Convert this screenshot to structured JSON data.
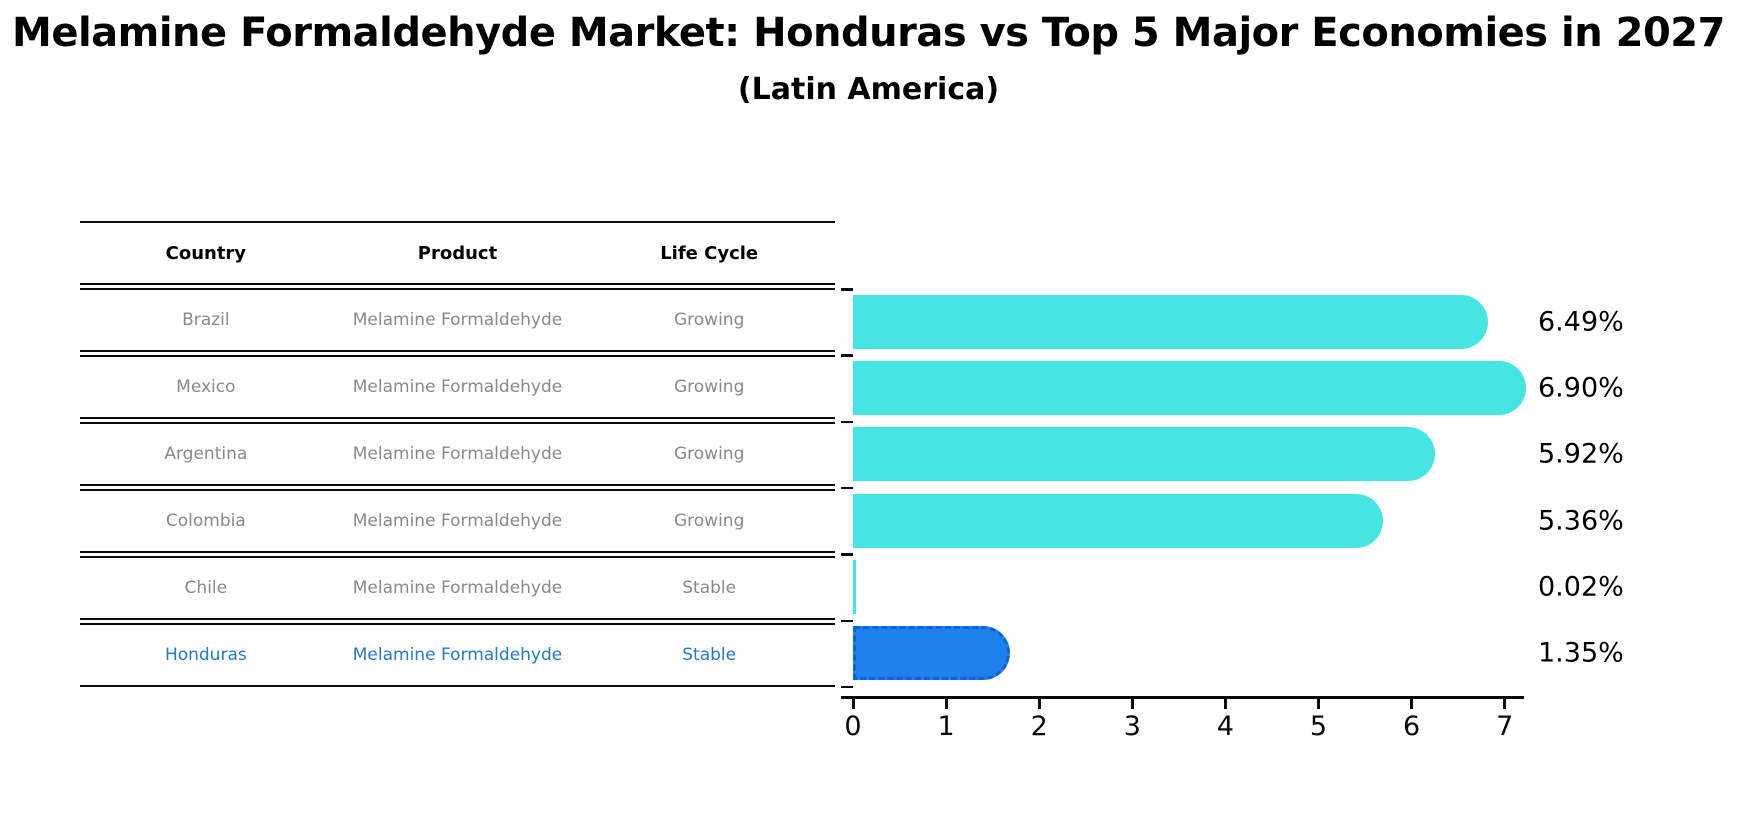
{
  "title": "Melamine Formaldehyde Market: Honduras vs Top 5 Major Economies in 2027",
  "subtitle": "(Latin America)",
  "table": {
    "headers": [
      "Country",
      "Product",
      "Life Cycle"
    ],
    "rows": [
      {
        "country": "Brazil",
        "product": "Melamine Formaldehyde",
        "life_cycle": "Growing",
        "highlight": false
      },
      {
        "country": "Mexico",
        "product": "Melamine Formaldehyde",
        "life_cycle": "Growing",
        "highlight": false
      },
      {
        "country": "Argentina",
        "product": "Melamine Formaldehyde",
        "life_cycle": "Growing",
        "highlight": false
      },
      {
        "country": "Colombia",
        "product": "Melamine Formaldehyde",
        "life_cycle": "Growing",
        "highlight": false
      },
      {
        "country": "Chile",
        "product": "Melamine Formaldehyde",
        "life_cycle": "Stable",
        "highlight": false
      },
      {
        "country": "Honduras",
        "product": "Melamine Formaldehyde",
        "life_cycle": "Stable",
        "highlight": true
      }
    ]
  },
  "chart_data": {
    "type": "bar",
    "orientation": "horizontal",
    "categories": [
      "Brazil",
      "Mexico",
      "Argentina",
      "Colombia",
      "Chile",
      "Honduras"
    ],
    "values": [
      6.49,
      6.9,
      5.92,
      5.36,
      0.02,
      1.35
    ],
    "labels": [
      "6.49%",
      "6.90%",
      "5.92%",
      "5.36%",
      "0.02%",
      "1.35%"
    ],
    "xlim": [
      0,
      7
    ],
    "x_ticks": [
      "0",
      "1",
      "2",
      "3",
      "4",
      "5",
      "6",
      "7"
    ],
    "highlight_index": 5,
    "legend": "none",
    "grid": "off",
    "bar_color": "#45e6e2",
    "highlight_color": "#1e80ec",
    "highlight_border_color": "#0e62d6",
    "axis_color": "#0a0a0a"
  }
}
